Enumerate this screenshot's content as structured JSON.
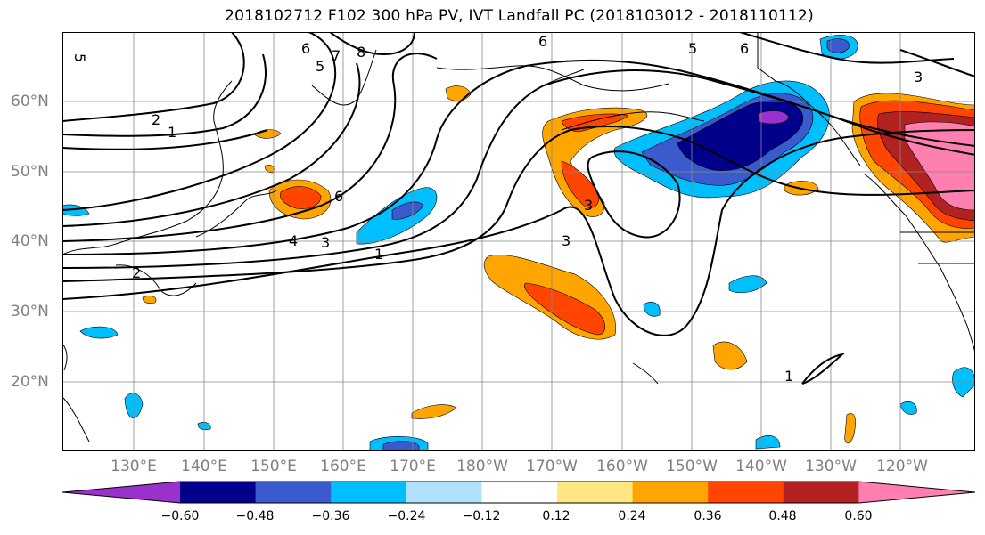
{
  "title": "2018102712 F102 300 hPa PV, IVT Landfall PC (2018103012 - 2018110112)",
  "longitude_labels": [
    "130°E",
    "140°E",
    "150°E",
    "160°E",
    "170°E",
    "180°W",
    "170°W",
    "160°W",
    "150°W",
    "140°W",
    "130°W",
    "120°W"
  ],
  "latitude_labels": [
    "60°N",
    "50°N",
    "40°N",
    "30°N",
    "20°N"
  ],
  "contour_labels": [
    "5",
    "6",
    "7",
    "8",
    "5",
    "6",
    "5",
    "6",
    "3",
    "2",
    "1",
    "6",
    "4",
    "3",
    "1",
    "2",
    "3",
    "3",
    "1"
  ],
  "colorbar": {
    "ticks": [
      "−0.60",
      "−0.48",
      "−0.36",
      "−0.24",
      "−0.12",
      "0.12",
      "0.24",
      "0.36",
      "0.48",
      "0.60"
    ],
    "colors": [
      "#9932cc",
      "#00008b",
      "#3a5bcc",
      "#00bfff",
      "#b0e2ff",
      "#ffffff",
      "#ffe680",
      "#ffa500",
      "#ff4500",
      "#b22222",
      "#ff80b0"
    ]
  },
  "fill_colors": {
    "purple": "#9932cc",
    "navy": "#00008b",
    "blue": "#3a5bcc",
    "sky": "#00bfff",
    "orange": "#ffa500",
    "red": "#ff4500",
    "darkred": "#b22222",
    "pink": "#ff80b0"
  }
}
